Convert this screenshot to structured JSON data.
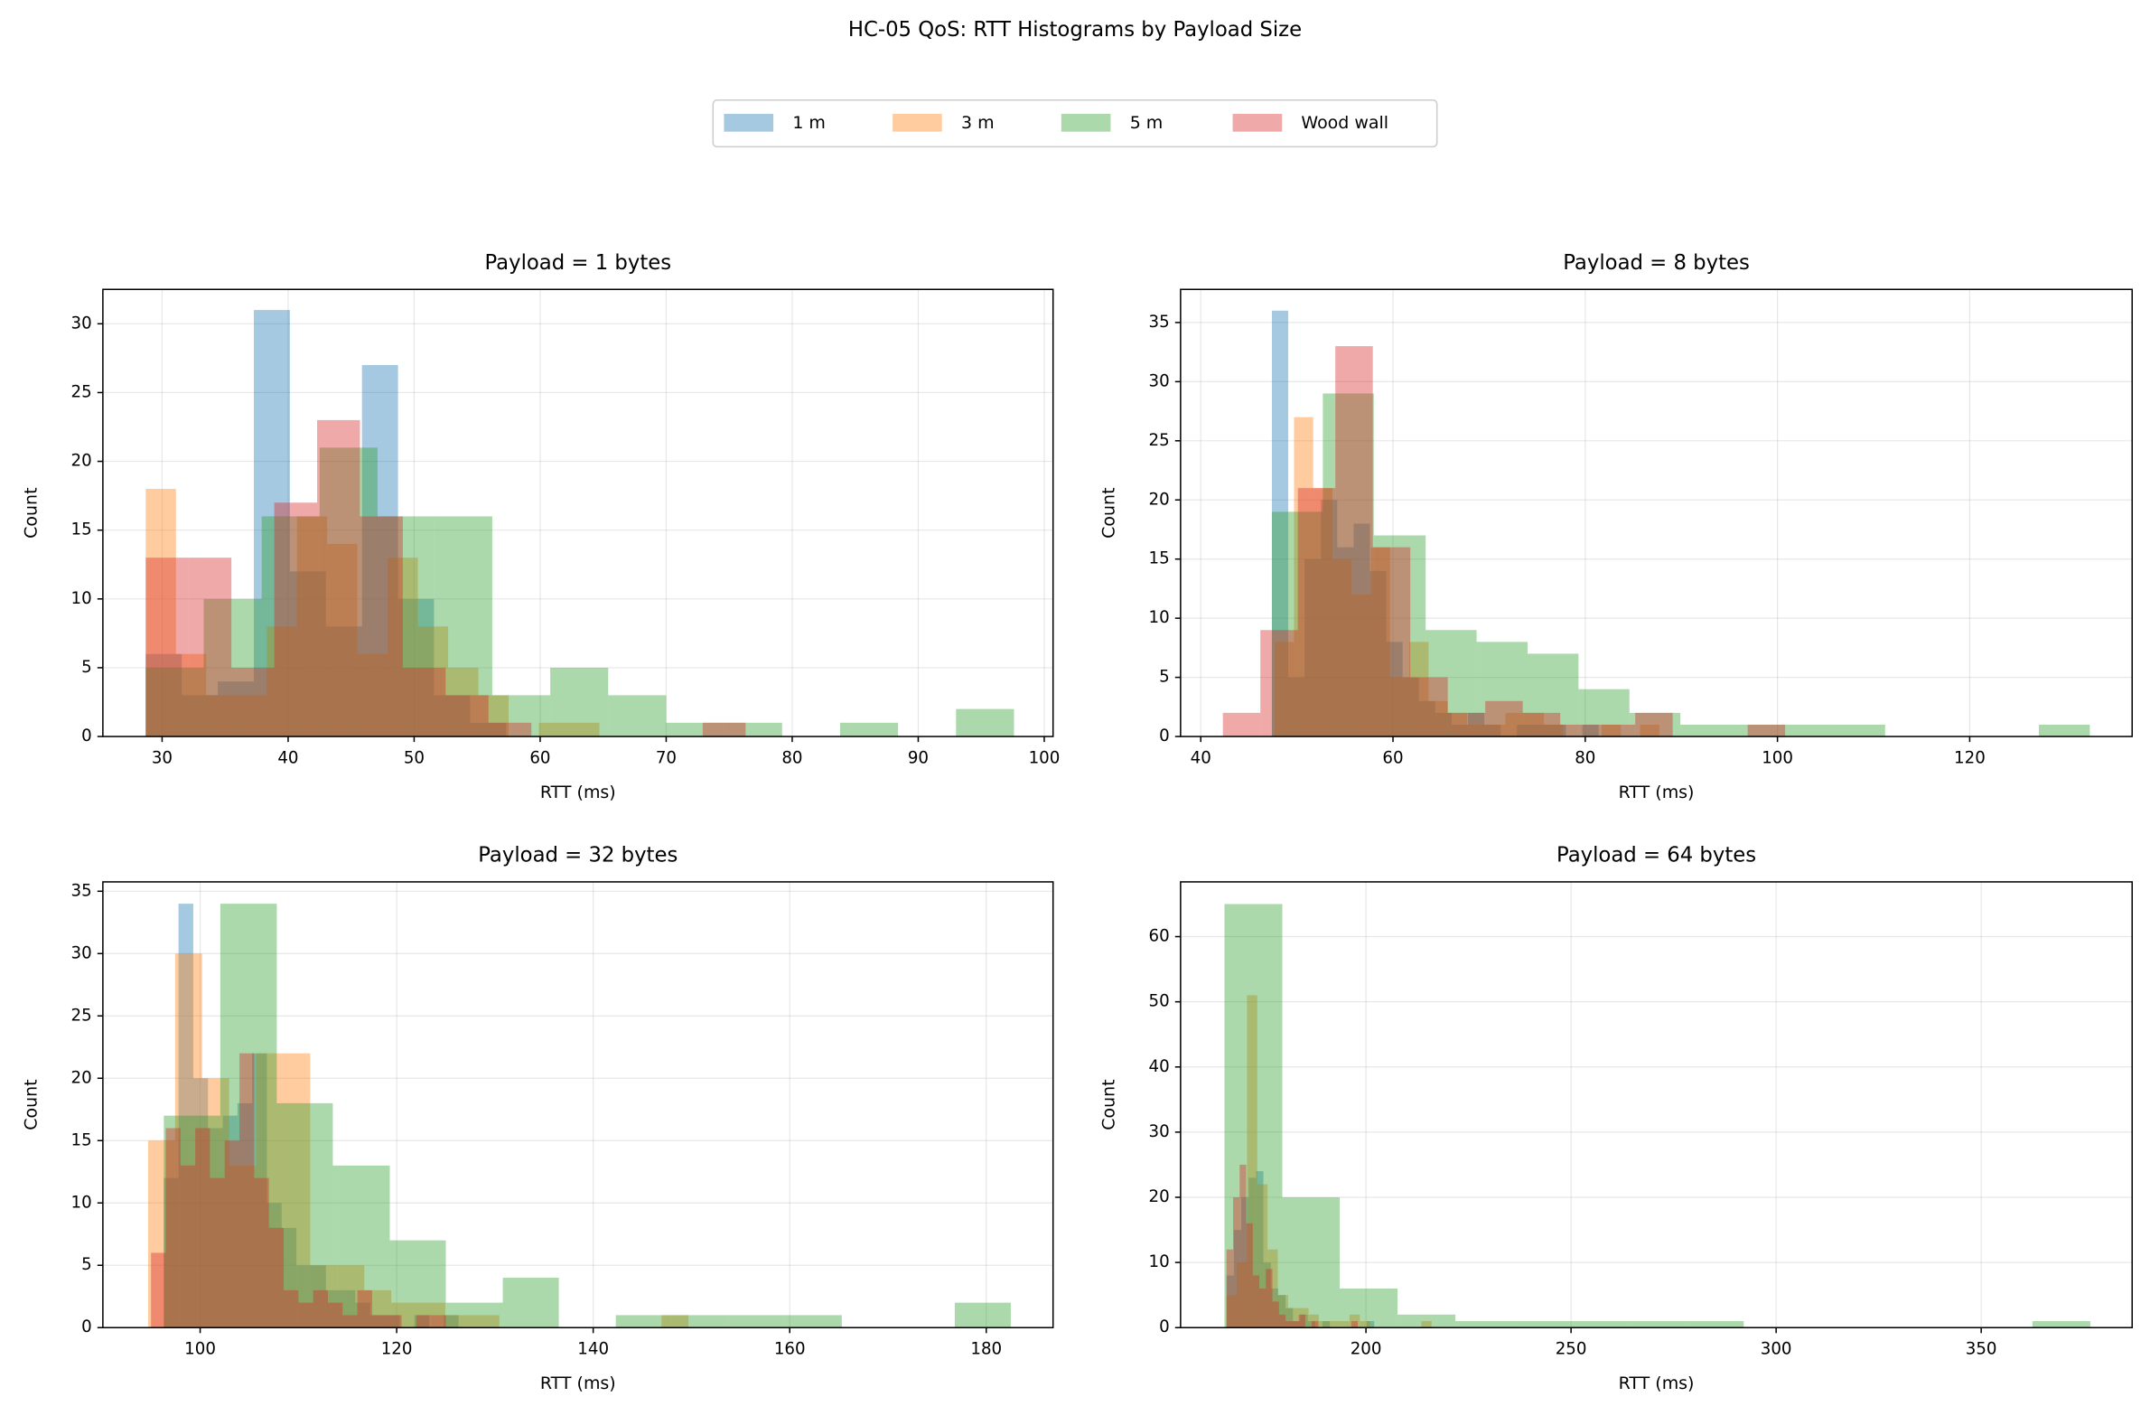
{
  "title": "HC-05 QoS: RTT Histograms by Payload Size",
  "legend": [
    {
      "name": "1 m",
      "color": "#1f77b4"
    },
    {
      "name": "3 m",
      "color": "#ff7f0e"
    },
    {
      "name": "5 m",
      "color": "#2ca02c"
    },
    {
      "name": "Wood wall",
      "color": "#d62728"
    }
  ],
  "chart_data": [
    {
      "type": "histogram",
      "title": "Payload = 1 bytes",
      "x_label": "RTT (ms)",
      "y_label": "Count",
      "xlim": [
        25.3,
        100.7
      ],
      "ylim": [
        0,
        32.5
      ],
      "xticks": [
        30,
        40,
        50,
        60,
        70,
        80,
        90,
        100
      ],
      "yticks": [
        0,
        5,
        10,
        15,
        20,
        25,
        30
      ],
      "grid": true,
      "alpha": 0.4,
      "series": [
        {
          "color": "#1f77b4",
          "bins": [
            28.7,
            31.56,
            34.42,
            37.28,
            40.14,
            43.0,
            45.86,
            48.72,
            51.58,
            54.44,
            57.3
          ],
          "values": [
            6,
            3,
            4,
            31,
            12,
            8,
            27,
            10,
            3,
            1
          ]
        },
        {
          "color": "#ff7f0e",
          "bins": [
            28.7,
            31.1,
            33.5,
            35.9,
            38.3,
            40.7,
            43.1,
            45.5,
            47.9,
            50.3,
            52.7,
            55.1,
            57.5,
            59.9,
            62.3,
            64.7
          ],
          "values": [
            18,
            6,
            3,
            3,
            8,
            16,
            14,
            6,
            13,
            8,
            5,
            3,
            0,
            1,
            1
          ]
        },
        {
          "color": "#2ca02c",
          "bins": [
            28.7,
            33.3,
            37.9,
            42.5,
            47.1,
            51.6,
            56.2,
            60.8,
            65.4,
            70.0,
            74.6,
            79.2,
            83.8,
            88.4,
            93.0,
            97.6
          ],
          "values": [
            5,
            10,
            16,
            21,
            16,
            16,
            3,
            5,
            3,
            1,
            1,
            0,
            1,
            0,
            2
          ]
        },
        {
          "color": "#d62728",
          "bins": [
            28.7,
            32.1,
            35.5,
            38.9,
            42.3,
            45.7,
            49.1,
            52.5,
            55.9,
            59.3,
            62.7,
            66.1,
            69.5,
            72.9,
            76.3
          ],
          "values": [
            13,
            13,
            5,
            17,
            23,
            16,
            5,
            3,
            1,
            0,
            0,
            0,
            0,
            1
          ]
        }
      ]
    },
    {
      "type": "histogram",
      "title": "Payload = 8 bytes",
      "x_label": "RTT (ms)",
      "y_label": "Count",
      "xlim": [
        37.9,
        136.9
      ],
      "ylim": [
        0,
        37.8
      ],
      "xticks": [
        40,
        60,
        80,
        100,
        120
      ],
      "yticks": [
        0,
        5,
        10,
        15,
        20,
        25,
        30,
        35
      ],
      "grid": true,
      "alpha": 0.4,
      "series": [
        {
          "color": "#1f77b4",
          "bins": [
            47.4,
            49.1,
            50.8,
            52.5,
            54.2,
            55.9,
            57.6,
            59.3,
            61.0,
            62.7,
            64.4,
            66.1,
            67.8,
            69.5,
            71.2,
            72.9,
            74.6,
            76.3,
            78.0,
            79.7,
            81.4
          ],
          "values": [
            36,
            5,
            15,
            20,
            16,
            18,
            14,
            8,
            5,
            3,
            2,
            1,
            2,
            1,
            0,
            1,
            1,
            1,
            0,
            1
          ]
        },
        {
          "color": "#ff7f0e",
          "bins": [
            47.7,
            49.7,
            51.7,
            53.7,
            55.7,
            57.7,
            59.7,
            61.7,
            63.7,
            65.7,
            67.7,
            69.7,
            71.7,
            73.7,
            75.7,
            77.7,
            79.7,
            81.7,
            83.7,
            85.7,
            87.7
          ],
          "values": [
            8,
            27,
            21,
            15,
            12,
            16,
            5,
            8,
            3,
            2,
            1,
            1,
            2,
            2,
            1,
            0,
            0,
            1,
            0,
            1
          ]
        },
        {
          "color": "#2ca02c",
          "bins": [
            47.4,
            52.7,
            58.0,
            63.4,
            68.7,
            74.0,
            79.3,
            84.6,
            89.9,
            95.3,
            100.6,
            105.9,
            111.2,
            116.5,
            121.8,
            127.2,
            132.5
          ],
          "values": [
            19,
            29,
            17,
            9,
            8,
            7,
            4,
            2,
            1,
            1,
            1,
            1,
            0,
            0,
            0,
            1
          ]
        },
        {
          "color": "#d62728",
          "bins": [
            42.3,
            46.2,
            50.1,
            54.0,
            57.9,
            61.8,
            65.7,
            69.6,
            73.5,
            77.4,
            81.3,
            85.2,
            89.1,
            93.0,
            96.9,
            100.8
          ],
          "values": [
            2,
            9,
            21,
            33,
            16,
            5,
            2,
            3,
            2,
            1,
            1,
            2,
            0,
            0,
            1
          ]
        }
      ]
    },
    {
      "type": "histogram",
      "title": "Payload = 32 bytes",
      "x_label": "RTT (ms)",
      "y_label": "Count",
      "xlim": [
        90.1,
        186.8
      ],
      "ylim": [
        0,
        35.75
      ],
      "xticks": [
        100,
        120,
        140,
        160,
        180
      ],
      "yticks": [
        0,
        5,
        10,
        15,
        20,
        25,
        30,
        35
      ],
      "grid": true,
      "alpha": 0.4,
      "series": [
        {
          "color": "#1f77b4",
          "bins": [
            96.3,
            97.8,
            99.3,
            100.8,
            102.3,
            103.8,
            105.3,
            106.8,
            108.3,
            109.8,
            111.3,
            112.8,
            114.3,
            115.8,
            117.3,
            118.8,
            120.3,
            121.8,
            123.3,
            124.8,
            126.3
          ],
          "values": [
            12,
            34,
            20,
            16,
            17,
            18,
            22,
            10,
            8,
            5,
            5,
            3,
            3,
            2,
            1,
            1,
            0,
            1,
            0,
            1
          ]
        },
        {
          "color": "#ff7f0e",
          "bins": [
            94.7,
            97.45,
            100.2,
            102.95,
            105.7,
            108.45,
            111.2,
            113.95,
            116.7,
            119.45,
            122.2,
            124.95,
            127.7,
            130.45,
            133.2,
            135.95,
            138.7,
            141.45,
            144.2,
            146.95,
            149.7
          ],
          "values": [
            15,
            30,
            20,
            13,
            22,
            22,
            5,
            5,
            3,
            2,
            2,
            1,
            1,
            0,
            0,
            0,
            0,
            0,
            0,
            1
          ]
        },
        {
          "color": "#2ca02c",
          "bins": [
            96.3,
            102.05,
            107.8,
            113.5,
            119.3,
            125.0,
            130.8,
            136.5,
            142.3,
            148.0,
            153.8,
            159.5,
            165.3,
            171.0,
            176.8,
            182.5
          ],
          "values": [
            17,
            34,
            18,
            13,
            7,
            2,
            4,
            0,
            1,
            1,
            1,
            1,
            0,
            0,
            2
          ]
        },
        {
          "color": "#d62728",
          "bins": [
            95.0,
            96.5,
            98.0,
            99.5,
            101.0,
            102.5,
            104.0,
            105.5,
            107.0,
            108.5,
            110.0,
            111.5,
            113.0,
            114.5,
            116.0,
            117.5,
            119.0,
            120.5,
            122.0,
            123.5,
            125.0
          ],
          "values": [
            6,
            16,
            13,
            16,
            12,
            15,
            22,
            12,
            8,
            3,
            2,
            3,
            2,
            1,
            3,
            1,
            1,
            0,
            1,
            1
          ]
        }
      ]
    },
    {
      "type": "histogram",
      "title": "Payload = 64 bytes",
      "x_label": "RTT (ms)",
      "y_label": "Count",
      "xlim": [
        154.8,
        386.8
      ],
      "ylim": [
        0,
        68.4
      ],
      "xticks": [
        200,
        250,
        300,
        350
      ],
      "yticks": [
        0,
        10,
        20,
        30,
        40,
        50,
        60
      ],
      "grid": true,
      "alpha": 0.4,
      "series": [
        {
          "color": "#1f77b4",
          "bins": [
            166.0,
            167.8,
            169.6,
            171.4,
            173.2,
            175.0,
            176.8,
            178.6,
            180.4,
            182.2,
            184.0,
            185.8,
            187.6,
            189.4,
            191.2,
            193.0,
            194.8,
            196.6,
            198.4,
            200.2,
            202.0
          ],
          "values": [
            8,
            15,
            20,
            23,
            24,
            10,
            6,
            5,
            3,
            1,
            2,
            1,
            0,
            1,
            0,
            0,
            0,
            0,
            0,
            1
          ]
        },
        {
          "color": "#ff7f0e",
          "bins": [
            166.0,
            168.5,
            171.0,
            173.5,
            176.0,
            178.5,
            181.0,
            183.5,
            186.0,
            188.5,
            191.0,
            193.5,
            196.0,
            198.5,
            201.0,
            203.5,
            206.0,
            208.5,
            211.0,
            213.5,
            216.0
          ],
          "values": [
            5,
            10,
            51,
            22,
            12,
            5,
            3,
            3,
            2,
            1,
            1,
            1,
            2,
            1,
            0,
            0,
            0,
            0,
            0,
            1
          ]
        },
        {
          "color": "#2ca02c",
          "bins": [
            165.5,
            179.6,
            193.6,
            207.7,
            221.8,
            235.9,
            249.9,
            264.0,
            278.1,
            292.1,
            306.2,
            320.3,
            334.3,
            348.4,
            362.5,
            376.6
          ],
          "values": [
            65,
            20,
            6,
            2,
            1,
            1,
            1,
            1,
            1,
            0,
            0,
            0,
            0,
            0,
            1
          ]
        },
        {
          "color": "#d62728",
          "bins": [
            166.0,
            167.6,
            169.2,
            170.8,
            172.4,
            174.0,
            175.6,
            177.2,
            178.8,
            180.4,
            182.0,
            183.6,
            185.2,
            186.8,
            188.4,
            190.0,
            191.6,
            193.2,
            194.8,
            196.4,
            198.0
          ],
          "values": [
            12,
            20,
            25,
            16,
            8,
            6,
            9,
            4,
            2,
            1,
            1,
            2,
            0,
            1,
            0,
            0,
            0,
            0,
            0,
            1
          ]
        }
      ]
    }
  ]
}
